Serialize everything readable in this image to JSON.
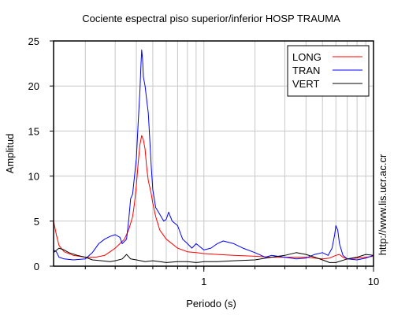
{
  "chart_data": {
    "type": "line",
    "title": "Cociente espectral piso superior/inferior  HOSP TRAUMA",
    "xlabel": "Periodo (s)",
    "ylabel": "Amplitud",
    "xscale": "log",
    "xlim": [
      0.13,
      10
    ],
    "ylim": [
      0,
      25
    ],
    "x_ticks": [
      {
        "value": 1,
        "label": "1"
      },
      {
        "value": 10,
        "label": "10"
      }
    ],
    "y_ticks": [
      0,
      5,
      10,
      15,
      20,
      25
    ],
    "grid": true,
    "legend_position": "top-right",
    "side_note": "http://www.lis.ucr.ac.cr",
    "series": [
      {
        "name": "LONG",
        "color": "#ff0000",
        "points": [
          [
            0.13,
            5.0
          ],
          [
            0.135,
            3.5
          ],
          [
            0.14,
            2.3
          ],
          [
            0.15,
            1.6
          ],
          [
            0.17,
            1.2
          ],
          [
            0.2,
            1.0
          ],
          [
            0.23,
            1.0
          ],
          [
            0.26,
            1.2
          ],
          [
            0.28,
            1.6
          ],
          [
            0.3,
            2.0
          ],
          [
            0.32,
            2.5
          ],
          [
            0.34,
            3.0
          ],
          [
            0.36,
            4.0
          ],
          [
            0.38,
            5.5
          ],
          [
            0.39,
            7.0
          ],
          [
            0.4,
            9.0
          ],
          [
            0.41,
            11.5
          ],
          [
            0.42,
            13.5
          ],
          [
            0.43,
            14.5
          ],
          [
            0.44,
            14.0
          ],
          [
            0.45,
            13.0
          ],
          [
            0.46,
            11.0
          ],
          [
            0.47,
            9.5
          ],
          [
            0.49,
            8.0
          ],
          [
            0.5,
            7.0
          ],
          [
            0.52,
            5.5
          ],
          [
            0.55,
            4.0
          ],
          [
            0.6,
            3.0
          ],
          [
            0.7,
            2.0
          ],
          [
            0.8,
            1.6
          ],
          [
            0.9,
            1.5
          ],
          [
            1.0,
            1.4
          ],
          [
            1.2,
            1.3
          ],
          [
            1.5,
            1.2
          ],
          [
            2.0,
            1.1
          ],
          [
            2.5,
            1.0
          ],
          [
            3.0,
            1.0
          ],
          [
            3.5,
            1.0
          ],
          [
            4.0,
            1.0
          ],
          [
            5.0,
            0.8
          ],
          [
            5.5,
            0.9
          ],
          [
            6.0,
            1.2
          ],
          [
            6.3,
            1.3
          ],
          [
            6.6,
            1.0
          ],
          [
            7.0,
            0.8
          ],
          [
            8.0,
            0.9
          ],
          [
            9.0,
            1.0
          ],
          [
            10.0,
            1.1
          ]
        ]
      },
      {
        "name": "TRAN",
        "color": "#0000ff",
        "points": [
          [
            0.13,
            1.8
          ],
          [
            0.135,
            1.6
          ],
          [
            0.14,
            1.0
          ],
          [
            0.15,
            0.8
          ],
          [
            0.17,
            0.7
          ],
          [
            0.2,
            0.8
          ],
          [
            0.22,
            1.5
          ],
          [
            0.24,
            2.5
          ],
          [
            0.26,
            3.0
          ],
          [
            0.28,
            3.3
          ],
          [
            0.3,
            3.5
          ],
          [
            0.32,
            3.2
          ],
          [
            0.33,
            2.5
          ],
          [
            0.35,
            3.0
          ],
          [
            0.36,
            5.0
          ],
          [
            0.37,
            7.5
          ],
          [
            0.38,
            8.0
          ],
          [
            0.4,
            12.0
          ],
          [
            0.41,
            16.0
          ],
          [
            0.42,
            19.5
          ],
          [
            0.425,
            22.0
          ],
          [
            0.43,
            24.0
          ],
          [
            0.435,
            23.0
          ],
          [
            0.44,
            21.0
          ],
          [
            0.45,
            20.0
          ],
          [
            0.46,
            18.5
          ],
          [
            0.47,
            17.0
          ],
          [
            0.48,
            14.0
          ],
          [
            0.49,
            11.0
          ],
          [
            0.5,
            8.5
          ],
          [
            0.52,
            6.5
          ],
          [
            0.54,
            6.0
          ],
          [
            0.56,
            5.5
          ],
          [
            0.58,
            5.0
          ],
          [
            0.6,
            5.2
          ],
          [
            0.62,
            6.0
          ],
          [
            0.65,
            5.0
          ],
          [
            0.7,
            4.5
          ],
          [
            0.75,
            3.0
          ],
          [
            0.8,
            2.5
          ],
          [
            0.85,
            2.0
          ],
          [
            0.9,
            2.5
          ],
          [
            1.0,
            1.8
          ],
          [
            1.1,
            2.0
          ],
          [
            1.2,
            2.5
          ],
          [
            1.3,
            2.8
          ],
          [
            1.5,
            2.5
          ],
          [
            1.7,
            2.0
          ],
          [
            2.0,
            1.5
          ],
          [
            2.3,
            1.0
          ],
          [
            2.5,
            1.2
          ],
          [
            3.0,
            1.0
          ],
          [
            3.5,
            0.8
          ],
          [
            4.0,
            0.9
          ],
          [
            4.5,
            1.3
          ],
          [
            5.0,
            1.5
          ],
          [
            5.4,
            1.2
          ],
          [
            5.7,
            2.0
          ],
          [
            5.9,
            3.5
          ],
          [
            6.0,
            4.5
          ],
          [
            6.15,
            4.0
          ],
          [
            6.3,
            2.5
          ],
          [
            6.6,
            1.2
          ],
          [
            7.0,
            0.8
          ],
          [
            8.0,
            0.7
          ],
          [
            9.0,
            0.9
          ],
          [
            10.0,
            1.2
          ]
        ]
      },
      {
        "name": "VERT",
        "color": "#000000",
        "points": [
          [
            0.13,
            1.5
          ],
          [
            0.14,
            2.0
          ],
          [
            0.15,
            1.8
          ],
          [
            0.16,
            1.5
          ],
          [
            0.18,
            1.2
          ],
          [
            0.2,
            1.0
          ],
          [
            0.22,
            0.7
          ],
          [
            0.25,
            0.6
          ],
          [
            0.28,
            0.5
          ],
          [
            0.3,
            0.6
          ],
          [
            0.33,
            0.8
          ],
          [
            0.35,
            1.3
          ],
          [
            0.37,
            0.8
          ],
          [
            0.4,
            0.7
          ],
          [
            0.45,
            0.5
          ],
          [
            0.5,
            0.6
          ],
          [
            0.55,
            0.5
          ],
          [
            0.6,
            0.4
          ],
          [
            0.7,
            0.5
          ],
          [
            0.8,
            0.5
          ],
          [
            0.9,
            0.4
          ],
          [
            1.0,
            0.5
          ],
          [
            1.2,
            0.5
          ],
          [
            1.5,
            0.6
          ],
          [
            2.0,
            0.7
          ],
          [
            2.5,
            1.0
          ],
          [
            3.0,
            1.2
          ],
          [
            3.5,
            1.5
          ],
          [
            4.0,
            1.3
          ],
          [
            4.5,
            1.0
          ],
          [
            5.0,
            0.7
          ],
          [
            5.5,
            0.4
          ],
          [
            6.0,
            0.4
          ],
          [
            7.0,
            0.8
          ],
          [
            8.0,
            1.0
          ],
          [
            9.0,
            1.3
          ],
          [
            10.0,
            1.2
          ]
        ]
      }
    ]
  }
}
